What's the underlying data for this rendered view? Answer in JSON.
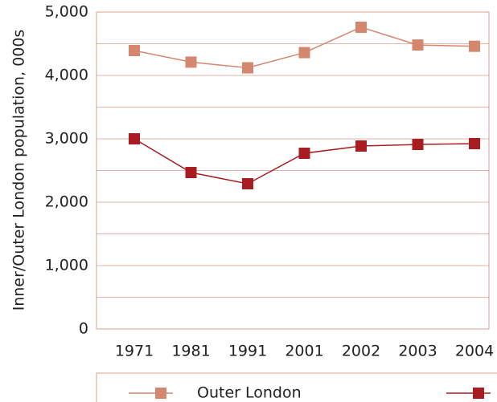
{
  "chart_data": {
    "type": "line",
    "y_label": "Inner/Outer London population, 000s",
    "categories": [
      "1971",
      "1981",
      "1991",
      "2001",
      "2002",
      "2003",
      "2004"
    ],
    "series": [
      {
        "name": "Outer London",
        "color": "#d4866e",
        "values": [
          4392,
          4210,
          4120,
          4360,
          4760,
          4480,
          4460
        ]
      },
      {
        "color": "#a81c22",
        "values": [
          3000,
          2468,
          2291,
          2772,
          2886,
          2911,
          2924
        ]
      }
    ],
    "ylim": [
      0,
      5000
    ],
    "yticks": [
      {
        "value": 0,
        "label": "0"
      },
      {
        "value": 1000,
        "label": "1,000"
      },
      {
        "value": 2000,
        "label": "2,000"
      },
      {
        "value": 3000,
        "label": "3,000"
      },
      {
        "value": 4000,
        "label": "4,000"
      },
      {
        "value": 5000,
        "label": "5,000"
      }
    ],
    "minor_yticks": [
      500,
      1500,
      2500,
      3500,
      4500
    ],
    "grid": true
  }
}
